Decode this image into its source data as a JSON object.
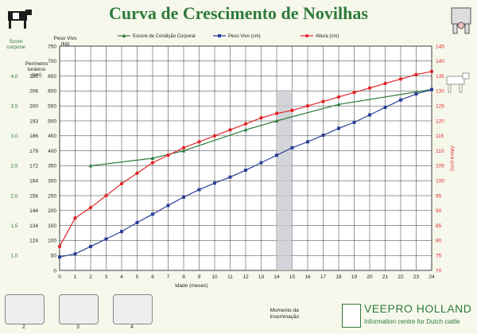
{
  "chart_data": {
    "type": "line",
    "title": "Curva de Crescimento de Novilhas",
    "x": [
      0,
      1,
      2,
      3,
      4,
      5,
      6,
      7,
      8,
      9,
      10,
      11,
      12,
      13,
      14,
      15,
      16,
      17,
      18,
      19,
      20,
      21,
      22,
      23,
      24
    ],
    "x_ticks": [
      "0",
      "1",
      "2",
      "3",
      "4",
      "5",
      "6",
      "7",
      "8",
      "9",
      "10",
      "11",
      "12",
      "13",
      "14",
      "15",
      "16",
      "17",
      "18",
      "19",
      "20",
      "21",
      "22",
      "23",
      "24"
    ],
    "xlabel": "Idade (meses)",
    "xlim": [
      0,
      24
    ],
    "ylim": [
      0,
      750
    ],
    "y_left_ticks": [
      "0",
      "50",
      "100",
      "150",
      "200",
      "250",
      "300",
      "350",
      "400",
      "450",
      "500",
      "550",
      "600",
      "650",
      "700",
      "750"
    ],
    "y_left_label_line1": "Peso Vivo",
    "y_left_label_line2": "(kg)",
    "perimetro_label_line1": "Perímetro",
    "perimetro_label_line2": "toráxico",
    "perimetro_label_line3": "(cm)",
    "perimetro_ticks": [
      {
        "at": 650,
        "label": "220"
      },
      {
        "at": 600,
        "label": "206"
      },
      {
        "at": 550,
        "label": "200"
      },
      {
        "at": 500,
        "label": "193"
      },
      {
        "at": 450,
        "label": "186"
      },
      {
        "at": 400,
        "label": "179"
      },
      {
        "at": 350,
        "label": "172"
      },
      {
        "at": 300,
        "label": "164"
      },
      {
        "at": 250,
        "label": "156"
      },
      {
        "at": 200,
        "label": "144"
      },
      {
        "at": 150,
        "label": "134"
      },
      {
        "at": 100,
        "label": "124"
      }
    ],
    "score_label_line1": "Score",
    "score_label_line2": "corporal",
    "score_ticks": [
      {
        "at": 650,
        "label": "4,0"
      },
      {
        "at": 550,
        "label": "3,5"
      },
      {
        "at": 450,
        "label": "3,0"
      },
      {
        "at": 350,
        "label": "2,5"
      },
      {
        "at": 250,
        "label": "2,0"
      },
      {
        "at": 150,
        "label": "1,5"
      },
      {
        "at": 50,
        "label": "1,0"
      }
    ],
    "y_right_label": "Altura (cm)",
    "y_right_range": [
      70,
      145
    ],
    "y_right_ticks": [
      "70",
      "75",
      "80",
      "85",
      "90",
      "95",
      "100",
      "105",
      "110",
      "115",
      "120",
      "125",
      "130",
      "135",
      "140",
      "145"
    ],
    "highlight": {
      "x_from": 14,
      "x_to": 15,
      "label_line1": "Momento da",
      "label_line2": "Inseminação"
    },
    "series": [
      {
        "name": "Escore de Condição Corporal",
        "color": "#2e7a3a",
        "marker": "triangle",
        "axis": "left",
        "x": [
          2,
          6,
          8,
          12,
          14,
          18,
          24
        ],
        "values": [
          350,
          375,
          400,
          470,
          500,
          555,
          605
        ]
      },
      {
        "name": "Peso Vivo (cm)",
        "color": "#2a3f98",
        "marker": "square",
        "axis": "left",
        "x": [
          0,
          1,
          2,
          3,
          4,
          5,
          6,
          7,
          8,
          9,
          10,
          11,
          12,
          13,
          14,
          15,
          16,
          17,
          18,
          19,
          20,
          21,
          22,
          23,
          24
        ],
        "values": [
          45,
          55,
          80,
          105,
          130,
          160,
          188,
          217,
          245,
          270,
          292,
          312,
          335,
          360,
          385,
          410,
          430,
          452,
          475,
          495,
          520,
          545,
          570,
          590,
          605
        ]
      },
      {
        "name": "Altura (cm)",
        "color": "#e0262a",
        "marker": "circle",
        "axis": "right",
        "x": [
          0,
          1,
          2,
          3,
          4,
          5,
          6,
          7,
          8,
          9,
          10,
          11,
          12,
          13,
          14,
          15,
          16,
          17,
          18,
          19,
          20,
          21,
          22,
          23,
          24
        ],
        "values": [
          78,
          87.5,
          91,
          95,
          99,
          102.5,
          106,
          108.5,
          111,
          113,
          115,
          117,
          119,
          121,
          122.5,
          123.5,
          125,
          126.5,
          128,
          129.5,
          131,
          132.5,
          134,
          135.5,
          136.5
        ]
      }
    ]
  },
  "brand": {
    "name": "VEEPRO HOLLAND",
    "subtitle": "Information centre for Dutch cattle"
  },
  "thumb_numbers": [
    "2",
    "3",
    "4"
  ]
}
